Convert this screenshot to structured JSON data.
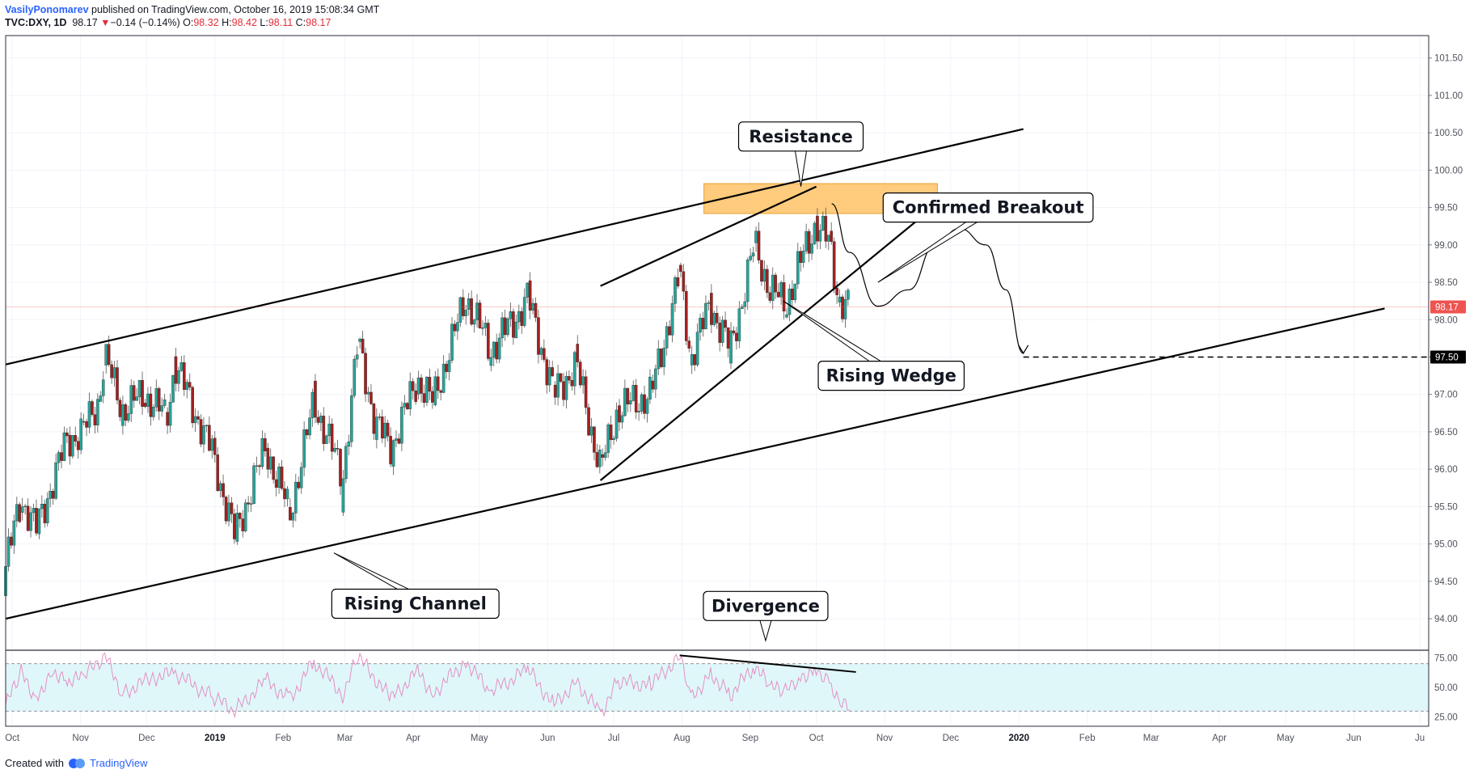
{
  "header": {
    "author": "VasilyPonomarev",
    "published_text": "published on TradingView.com, October 16, 2019 15:08:34 GMT",
    "symbol": "TVC:DXY, 1D",
    "last": "98.17",
    "change": "−0.14 (−0.14%)",
    "o_label": "O:",
    "o_value": "98.32",
    "h_label": "H:",
    "h_value": "98.42",
    "l_label": "L:",
    "l_value": "98.11",
    "c_label": "C:",
    "c_value": "98.17"
  },
  "footer": {
    "created_with": "Created with",
    "brand": "TradingView",
    "logo_icon": "tradingview-logo-icon"
  },
  "colors": {
    "up": "#26a69a",
    "down": "#ef5350",
    "band_fill": "#e0f7fa",
    "rsi_line": "#e291c4",
    "resistance_zone": "#ffc266",
    "price_badge": "#ef5350"
  },
  "chart_data": {
    "type": "candlestick",
    "symbol": "TVC:DXY",
    "interval": "1D",
    "last_price": 98.17,
    "last_price_label": "98.17",
    "target_label": "97.50",
    "target_price": 97.5,
    "ylim": [
      93.6,
      101.8
    ],
    "y_ticks": [
      "94.00",
      "94.50",
      "95.00",
      "95.50",
      "96.00",
      "96.50",
      "97.00",
      "97.50",
      "98.00",
      "98.50",
      "99.00",
      "99.50",
      "100.00",
      "100.50",
      "101.00",
      "101.50"
    ],
    "x_ticks": [
      {
        "label": "Oct",
        "date": "2018-10-01",
        "bold": false
      },
      {
        "label": "Nov",
        "date": "2018-11-01",
        "bold": false
      },
      {
        "label": "Dec",
        "date": "2018-12-01",
        "bold": false
      },
      {
        "label": "2019",
        "date": "2019-01-01",
        "bold": true
      },
      {
        "label": "Feb",
        "date": "2019-02-01",
        "bold": false
      },
      {
        "label": "Mar",
        "date": "2019-03-01",
        "bold": false
      },
      {
        "label": "Apr",
        "date": "2019-04-01",
        "bold": false
      },
      {
        "label": "May",
        "date": "2019-05-01",
        "bold": false
      },
      {
        "label": "Jun",
        "date": "2019-06-01",
        "bold": false
      },
      {
        "label": "Jul",
        "date": "2019-07-01",
        "bold": false
      },
      {
        "label": "Aug",
        "date": "2019-08-01",
        "bold": false
      },
      {
        "label": "Sep",
        "date": "2019-09-01",
        "bold": false
      },
      {
        "label": "Oct",
        "date": "2019-10-01",
        "bold": false
      },
      {
        "label": "Nov",
        "date": "2019-11-01",
        "bold": false
      },
      {
        "label": "Dec",
        "date": "2019-12-01",
        "bold": false
      },
      {
        "label": "2020",
        "date": "2020-01-01",
        "bold": true
      },
      {
        "label": "Feb",
        "date": "2020-02-01",
        "bold": false
      },
      {
        "label": "Mar",
        "date": "2020-03-01",
        "bold": false
      },
      {
        "label": "Apr",
        "date": "2020-04-01",
        "bold": false
      },
      {
        "label": "May",
        "date": "2020-05-01",
        "bold": false
      },
      {
        "label": "Jun",
        "date": "2020-06-01",
        "bold": false
      },
      {
        "label": "Ju",
        "date": "2020-07-01",
        "bold": false
      }
    ],
    "price_path": [
      [
        "2018-09-28",
        94.7
      ],
      [
        "2018-10-05",
        95.6
      ],
      [
        "2018-10-12",
        95.2
      ],
      [
        "2018-10-19",
        95.8
      ],
      [
        "2018-10-26",
        96.4
      ],
      [
        "2018-11-02",
        96.5
      ],
      [
        "2018-11-09",
        96.9
      ],
      [
        "2018-11-12",
        97.5
      ],
      [
        "2018-11-20",
        96.8
      ],
      [
        "2018-11-30",
        97.0
      ],
      [
        "2018-12-10",
        96.7
      ],
      [
        "2018-12-14",
        97.4
      ],
      [
        "2018-12-31",
        96.2
      ],
      [
        "2019-01-10",
        95.1
      ],
      [
        "2019-01-24",
        96.3
      ],
      [
        "2019-02-04",
        95.4
      ],
      [
        "2019-02-15",
        96.9
      ],
      [
        "2019-02-28",
        95.9
      ],
      [
        "2019-03-07",
        97.7
      ],
      [
        "2019-03-15",
        96.6
      ],
      [
        "2019-03-22",
        96.3
      ],
      [
        "2019-04-03",
        97.2
      ],
      [
        "2019-04-10",
        96.9
      ],
      [
        "2019-04-25",
        98.3
      ],
      [
        "2019-05-06",
        97.6
      ],
      [
        "2019-05-17",
        98.0
      ],
      [
        "2019-05-23",
        98.3
      ],
      [
        "2019-06-04",
        97.0
      ],
      [
        "2019-06-14",
        97.4
      ],
      [
        "2019-06-25",
        96.0
      ],
      [
        "2019-07-03",
        96.8
      ],
      [
        "2019-07-18",
        97.0
      ],
      [
        "2019-07-31",
        98.6
      ],
      [
        "2019-08-05",
        97.5
      ],
      [
        "2019-08-14",
        98.2
      ],
      [
        "2019-08-23",
        97.6
      ],
      [
        "2019-09-03",
        99.0
      ],
      [
        "2019-09-10",
        98.4
      ],
      [
        "2019-09-17",
        98.2
      ],
      [
        "2019-09-23",
        98.7
      ],
      [
        "2019-10-01",
        99.3
      ],
      [
        "2019-10-07",
        99.0
      ],
      [
        "2019-10-11",
        98.3
      ],
      [
        "2019-10-16",
        98.17
      ]
    ],
    "rsi": {
      "levels": [
        "25.00",
        "50.00",
        "75.00"
      ],
      "upper_band": 70,
      "lower_band": 30,
      "ylim": [
        20,
        80
      ],
      "path": [
        [
          "2018-09-28",
          35
        ],
        [
          "2018-10-05",
          62
        ],
        [
          "2018-10-12",
          40
        ],
        [
          "2018-10-19",
          65
        ],
        [
          "2018-10-26",
          55
        ],
        [
          "2018-11-02",
          58
        ],
        [
          "2018-11-12",
          77
        ],
        [
          "2018-11-20",
          45
        ],
        [
          "2018-12-03",
          58
        ],
        [
          "2018-12-14",
          62
        ],
        [
          "2018-12-31",
          42
        ],
        [
          "2019-01-10",
          30
        ],
        [
          "2019-01-24",
          56
        ],
        [
          "2019-02-04",
          40
        ],
        [
          "2019-02-15",
          72
        ],
        [
          "2019-02-28",
          44
        ],
        [
          "2019-03-07",
          76
        ],
        [
          "2019-03-22",
          40
        ],
        [
          "2019-04-03",
          64
        ],
        [
          "2019-04-10",
          45
        ],
        [
          "2019-04-25",
          72
        ],
        [
          "2019-05-06",
          46
        ],
        [
          "2019-05-23",
          65
        ],
        [
          "2019-06-04",
          35
        ],
        [
          "2019-06-14",
          55
        ],
        [
          "2019-06-25",
          28
        ],
        [
          "2019-07-03",
          55
        ],
        [
          "2019-07-18",
          52
        ],
        [
          "2019-07-31",
          76
        ],
        [
          "2019-08-05",
          40
        ],
        [
          "2019-08-14",
          62
        ],
        [
          "2019-08-23",
          44
        ],
        [
          "2019-09-03",
          68
        ],
        [
          "2019-09-10",
          50
        ],
        [
          "2019-09-17",
          46
        ],
        [
          "2019-09-23",
          58
        ],
        [
          "2019-10-01",
          66
        ],
        [
          "2019-10-07",
          55
        ],
        [
          "2019-10-11",
          38
        ],
        [
          "2019-10-16",
          31
        ]
      ]
    },
    "drawings": {
      "channel_upper": {
        "from": [
          "2018-09-28",
          97.4
        ],
        "to": [
          "2020-01-03",
          100.55
        ]
      },
      "channel_lower": {
        "from": [
          "2018-09-28",
          94.0
        ],
        "to": [
          "2020-06-15",
          98.15
        ]
      },
      "wedge_upper": {
        "from": [
          "2019-06-25",
          98.45
        ],
        "to": [
          "2019-10-01",
          99.78
        ]
      },
      "wedge_lower": {
        "from": [
          "2019-06-25",
          95.85
        ],
        "to": [
          "2019-11-25",
          99.55
        ]
      },
      "resistance_zone": {
        "from_date": "2019-08-11",
        "to_date": "2019-11-25",
        "low": 99.42,
        "high": 99.82
      },
      "target_line": {
        "from_date": "2020-01-03",
        "price": 97.5
      },
      "projection": [
        [
          "2019-10-08",
          99.55
        ],
        [
          "2019-10-16",
          98.9
        ],
        [
          "2019-10-29",
          98.18
        ],
        [
          "2019-11-12",
          98.4
        ],
        [
          "2019-11-24",
          99.0
        ],
        [
          "2019-12-05",
          99.22
        ],
        [
          "2019-12-17",
          99.0
        ],
        [
          "2019-12-26",
          98.4
        ],
        [
          "2020-01-03",
          97.55
        ]
      ],
      "rsi_divergence": {
        "from": [
          "2019-07-31",
          77
        ],
        "to": [
          "2019-10-19",
          63
        ]
      }
    },
    "annotations": [
      {
        "text": "Resistance",
        "date": "2019-09-24",
        "price": 100.45,
        "pointer": [
          "2019-09-24",
          99.78
        ]
      },
      {
        "text": "Confirmed Breakout",
        "date": "2019-12-18",
        "price": 99.5,
        "pointer": [
          "2019-10-29",
          98.5
        ]
      },
      {
        "text": "Rising Wedge",
        "date": "2019-11-04",
        "price": 97.25,
        "pointer": [
          "2019-09-16",
          98.25
        ]
      },
      {
        "text": "Rising Channel",
        "date": "2019-04-02",
        "price": 94.2,
        "pointer": [
          "2019-02-24",
          94.88
        ]
      },
      {
        "text": "Divergence",
        "date": "2019-09-08",
        "price": 94.17,
        "pointer": [
          "2019-09-08",
          93.45
        ]
      }
    ]
  }
}
